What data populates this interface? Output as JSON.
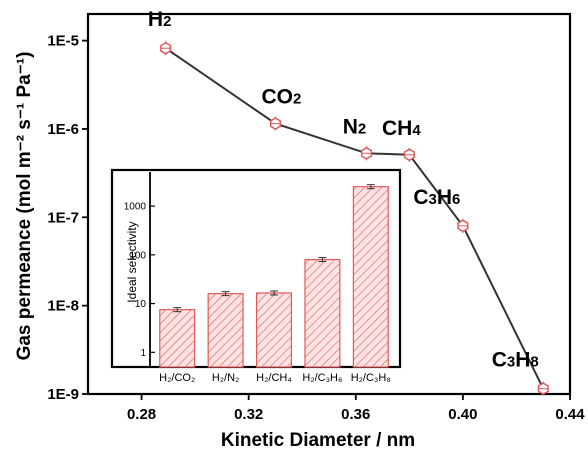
{
  "chart_data": [
    {
      "type": "line",
      "xlabel": "Kinetic Diameter / nm",
      "ylabel": "Gas permeance (mol m⁻² s⁻¹ Pa⁻¹)",
      "xlim": [
        0.26,
        0.44
      ],
      "ylim": [
        1e-09,
        2e-05
      ],
      "yscale": "log",
      "xticks": [
        "0.28",
        "0.32",
        "0.36",
        "0.40",
        "0.44"
      ],
      "yticks": [
        "1E-9",
        "1E-8",
        "1E-7",
        "1E-6",
        "1E-5"
      ],
      "marker_color": "#e05a5a",
      "line_color": "#333333",
      "series": [
        {
          "labels": [
            "H2",
            "CO2",
            "N2",
            "CH4",
            "C3H6",
            "C3H8"
          ],
          "x": [
            0.289,
            0.33,
            0.364,
            0.38,
            0.4,
            0.43
          ],
          "y": [
            8.2e-06,
            1.15e-06,
            5.3e-07,
            5.1e-07,
            8e-08,
            1.15e-09
          ]
        }
      ]
    },
    {
      "type": "bar",
      "ylabel": "Ideal selectivity",
      "yscale": "log",
      "ylim": [
        0.5,
        5000
      ],
      "yticks": [
        "1",
        "10",
        "100",
        "1000"
      ],
      "categories": [
        "H₂/CO₂",
        "H₂/N₂",
        "H₂/CH₄",
        "H₂/C₃H₆",
        "H₂/C₃H₈"
      ],
      "values": [
        7.5,
        16,
        16.5,
        80,
        2500
      ],
      "bar_color": "#e05a5a"
    }
  ]
}
